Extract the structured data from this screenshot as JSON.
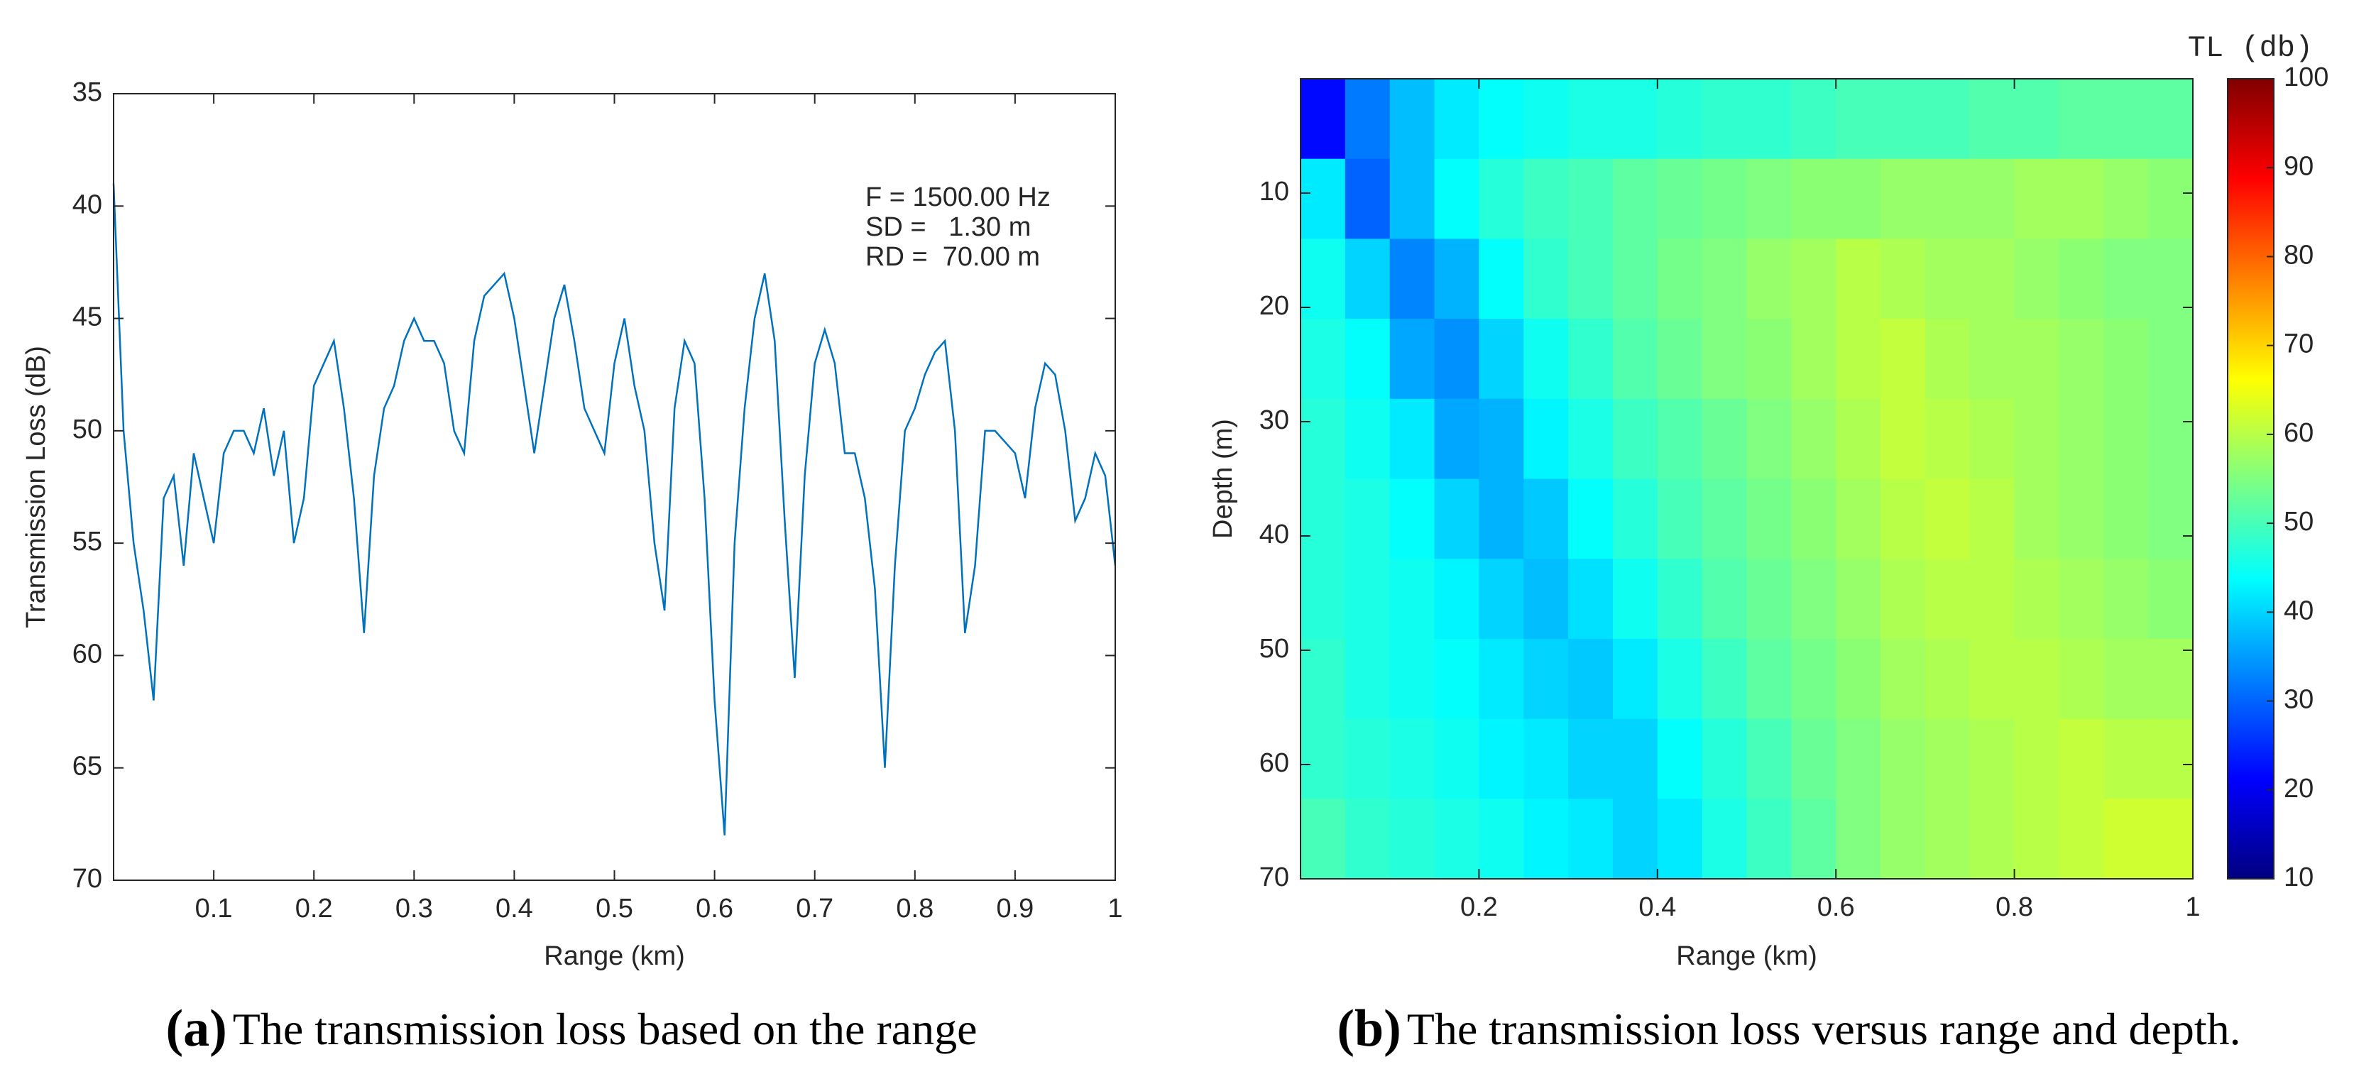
{
  "chart_data": [
    {
      "type": "line",
      "xlabel": "Range (km)",
      "ylabel": "Transmission Loss (dB)",
      "caption_label": "(a)",
      "caption": "The transmission loss based on the range",
      "annotations": [
        "F = 1500.00 Hz",
        "SD =   1.30 m",
        "RD =  70.00 m"
      ],
      "x": [
        0,
        0.01,
        0.02,
        0.03,
        0.04,
        0.05,
        0.06,
        0.07,
        0.08,
        0.09,
        0.1,
        0.11,
        0.12,
        0.13,
        0.14,
        0.15,
        0.16,
        0.17,
        0.18,
        0.19,
        0.2,
        0.21,
        0.22,
        0.23,
        0.24,
        0.25,
        0.26,
        0.27,
        0.28,
        0.29,
        0.3,
        0.31,
        0.32,
        0.33,
        0.34,
        0.35,
        0.36,
        0.37,
        0.38,
        0.39,
        0.4,
        0.41,
        0.42,
        0.43,
        0.44,
        0.45,
        0.46,
        0.47,
        0.48,
        0.49,
        0.5,
        0.51,
        0.52,
        0.53,
        0.54,
        0.55,
        0.56,
        0.57,
        0.58,
        0.59,
        0.6,
        0.61,
        0.62,
        0.63,
        0.64,
        0.65,
        0.66,
        0.67,
        0.68,
        0.69,
        0.7,
        0.71,
        0.72,
        0.73,
        0.74,
        0.75,
        0.76,
        0.77,
        0.78,
        0.79,
        0.8,
        0.81,
        0.82,
        0.83,
        0.84,
        0.85,
        0.86,
        0.87,
        0.88,
        0.89,
        0.9,
        0.91,
        0.92,
        0.93,
        0.94,
        0.95,
        0.96,
        0.97,
        0.98,
        0.99,
        1
      ],
      "series": [
        {
          "name": "TL",
          "color": "#0072bd",
          "values": [
            39,
            50,
            55,
            58,
            62,
            53,
            52,
            56,
            51,
            53,
            55,
            51,
            50,
            50,
            51,
            49,
            52,
            50,
            55,
            53,
            48,
            47,
            46,
            49,
            53,
            59,
            52,
            49,
            48,
            46,
            45,
            46,
            46,
            47,
            50,
            51,
            46,
            44,
            43.5,
            43,
            45,
            48,
            51,
            48,
            45,
            43.5,
            46,
            49,
            50,
            51,
            47,
            45,
            48,
            50,
            55,
            58,
            49,
            46,
            47,
            53,
            62,
            68,
            55,
            49,
            45,
            43,
            46,
            54,
            61,
            52,
            47,
            45.5,
            47,
            51,
            51,
            53,
            57,
            65,
            56,
            50,
            49,
            47.5,
            46.5,
            46,
            50,
            59,
            56,
            50,
            50,
            50.5,
            51,
            53,
            49,
            47,
            47.5,
            50,
            54,
            53,
            51,
            52,
            56
          ]
        }
      ],
      "xlim": [
        0,
        1
      ],
      "xticks": [
        0.1,
        0.2,
        0.3,
        0.4,
        0.5,
        0.6,
        0.7,
        0.8,
        0.9,
        1
      ],
      "ylim": [
        35,
        70
      ],
      "yticks": [
        35,
        40,
        45,
        50,
        55,
        60,
        65,
        70
      ],
      "y_inverted": true
    },
    {
      "type": "heatmap",
      "xlabel": "Range (km)",
      "ylabel": "Depth (m)",
      "caption_label": "(b)",
      "caption": "The transmission loss versus range and depth.",
      "x": [
        0.025,
        0.075,
        0.125,
        0.175,
        0.225,
        0.275,
        0.325,
        0.375,
        0.425,
        0.475,
        0.525,
        0.575,
        0.625,
        0.675,
        0.725,
        0.775,
        0.825,
        0.875,
        0.925,
        0.975
      ],
      "y": [
        3.5,
        10.5,
        17.5,
        24.5,
        31.5,
        38.5,
        45.5,
        52.5,
        59.5,
        66.5
      ],
      "z": [
        [
          22,
          32,
          38,
          42,
          44,
          45,
          46,
          46,
          47,
          48,
          48,
          49,
          50,
          50,
          50,
          51,
          51,
          52,
          52,
          52
        ],
        [
          42,
          30,
          38,
          44,
          47,
          49,
          50,
          52,
          53,
          54,
          55,
          56,
          56,
          57,
          57,
          57,
          58,
          58,
          57,
          56
        ],
        [
          45,
          40,
          33,
          37,
          44,
          48,
          50,
          52,
          54,
          55,
          57,
          58,
          60,
          59,
          58,
          58,
          57,
          56,
          55,
          55
        ],
        [
          46,
          44,
          36,
          34,
          40,
          45,
          48,
          51,
          53,
          55,
          56,
          58,
          60,
          61,
          59,
          58,
          58,
          57,
          56,
          55
        ],
        [
          47,
          45,
          42,
          36,
          37,
          43,
          46,
          49,
          51,
          53,
          55,
          57,
          59,
          61,
          60,
          59,
          58,
          57,
          56,
          55
        ],
        [
          47,
          46,
          44,
          40,
          37,
          39,
          44,
          47,
          50,
          52,
          54,
          56,
          58,
          60,
          61,
          60,
          58,
          57,
          56,
          55
        ],
        [
          47,
          46,
          45,
          43,
          40,
          38,
          41,
          45,
          48,
          51,
          53,
          55,
          57,
          59,
          60,
          60,
          59,
          58,
          57,
          56
        ],
        [
          48,
          46,
          45,
          44,
          42,
          40,
          39,
          42,
          46,
          49,
          52,
          54,
          56,
          58,
          59,
          60,
          60,
          59,
          58,
          58
        ],
        [
          48,
          47,
          46,
          45,
          43,
          42,
          40,
          40,
          44,
          47,
          50,
          53,
          55,
          57,
          58,
          59,
          60,
          61,
          60,
          60
        ],
        [
          50,
          48,
          47,
          46,
          45,
          43,
          42,
          40,
          42,
          46,
          49,
          52,
          55,
          57,
          58,
          59,
          60,
          61,
          62,
          62
        ]
      ],
      "xlim": [
        0,
        1
      ],
      "xticks": [
        0.2,
        0.4,
        0.6,
        0.8,
        1
      ],
      "ylim": [
        0,
        70
      ],
      "yticks": [
        10,
        20,
        30,
        40,
        50,
        60,
        70
      ],
      "y_inverted": true,
      "colormap": "jet",
      "colorbar_title": "TL (db)",
      "clim": [
        10,
        100
      ],
      "cticks": [
        10,
        20,
        30,
        40,
        50,
        60,
        70,
        80,
        90,
        100
      ]
    }
  ]
}
